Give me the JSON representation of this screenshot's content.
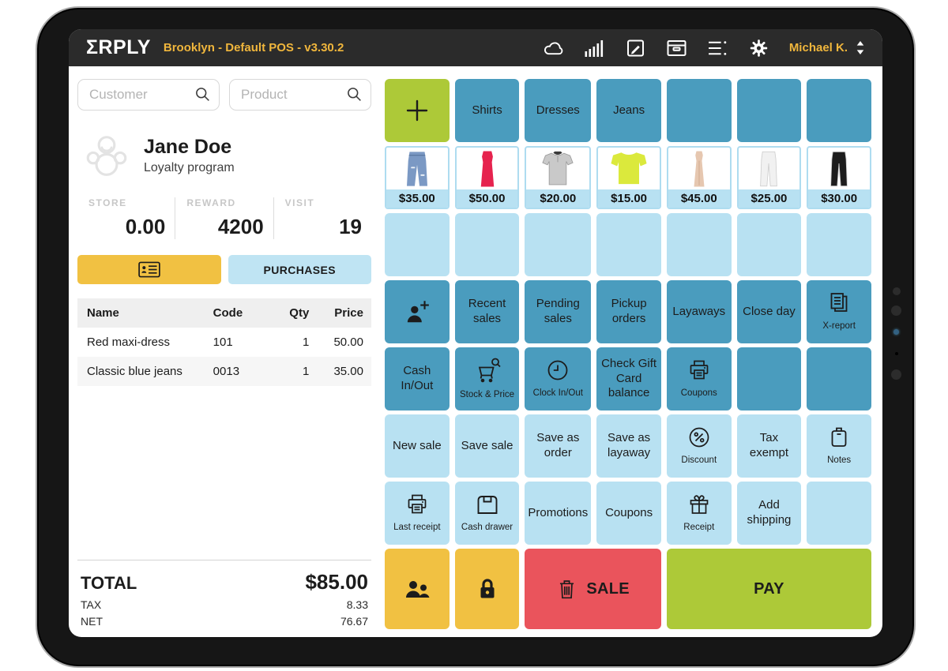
{
  "topbar": {
    "logo": "ΣRPLY",
    "title": "Brooklyn - Default POS - v3.30.2",
    "user": "Michael K.",
    "icons": [
      "cloud",
      "signal-bars",
      "edit",
      "archive",
      "menu-lines",
      "gear"
    ]
  },
  "left_panel": {
    "customer_search_placeholder": "Customer",
    "product_search_placeholder": "Product",
    "customer": {
      "name": "Jane Doe",
      "subtitle": "Loyalty program"
    },
    "stats": [
      {
        "label": "STORE",
        "value": "0.00"
      },
      {
        "label": "REWARD",
        "value": "4200"
      },
      {
        "label": "VISIT",
        "value": "19"
      }
    ],
    "purchases_label": "PURCHASES",
    "table": {
      "headers": [
        "Name",
        "Code",
        "Qty",
        "Price"
      ],
      "rows": [
        {
          "name": "Red maxi-dress",
          "code": "101",
          "qty": "1",
          "price": "50.00"
        },
        {
          "name": "Classic blue jeans",
          "code": "0013",
          "qty": "1",
          "price": "35.00"
        }
      ]
    },
    "totals": {
      "total_label": "TOTAL",
      "total_value": "$85.00",
      "tax_label": "TAX",
      "tax_value": "8.33",
      "net_label": "NET",
      "net_value": "76.67"
    }
  },
  "grid": {
    "rows": [
      {
        "cells": [
          {
            "name": "add-category-button",
            "style": "green",
            "icon": "plus",
            "icon_size": 34
          },
          {
            "name": "category-shirts",
            "style": "teal",
            "label": "Shirts"
          },
          {
            "name": "category-dresses",
            "style": "teal",
            "label": "Dresses"
          },
          {
            "name": "category-jeans",
            "style": "teal",
            "label": "Jeans"
          },
          {
            "name": "empty-category-slot",
            "style": "teal",
            "blank": true
          },
          {
            "name": "empty-category-slot",
            "style": "teal",
            "blank": true
          },
          {
            "name": "empty-category-slot",
            "style": "teal",
            "blank": true
          }
        ]
      },
      {
        "cells": [
          {
            "name": "product-blue-jeans",
            "product": {
              "shape": "jeans",
              "color": "#7b99c4",
              "price": "$35.00"
            }
          },
          {
            "name": "product-red-maxi-dress",
            "product": {
              "shape": "maxi-dress",
              "color": "#e6234e",
              "price": "$50.00"
            }
          },
          {
            "name": "product-gray-polo",
            "product": {
              "shape": "polo",
              "color": "#c9c9c9",
              "price": "$20.00"
            }
          },
          {
            "name": "product-neon-tshirt",
            "product": {
              "shape": "tshirt",
              "color": "#dbe93c",
              "price": "$15.00"
            }
          },
          {
            "name": "product-beige-gown",
            "product": {
              "shape": "gown",
              "color": "#e6c7b0",
              "price": "$45.00"
            }
          },
          {
            "name": "product-white-pants",
            "product": {
              "shape": "pants",
              "color": "#f1f1f1",
              "price": "$25.00"
            }
          },
          {
            "name": "product-black-pants",
            "product": {
              "shape": "pants",
              "color": "#1d1d1d",
              "price": "$30.00"
            }
          }
        ]
      },
      {
        "cells": [
          {
            "name": "empty-slot",
            "style": "lightblue",
            "blank": true
          },
          {
            "name": "empty-slot",
            "style": "lightblue",
            "blank": true
          },
          {
            "name": "empty-slot",
            "style": "lightblue",
            "blank": true
          },
          {
            "name": "empty-slot",
            "style": "lightblue",
            "blank": true
          },
          {
            "name": "empty-slot",
            "style": "lightblue",
            "blank": true
          },
          {
            "name": "empty-slot",
            "style": "lightblue",
            "blank": true
          },
          {
            "name": "empty-slot",
            "style": "lightblue",
            "blank": true
          }
        ]
      },
      {
        "cells": [
          {
            "name": "add-customer-button",
            "style": "teal",
            "icon": "person-add",
            "icon_size": 36
          },
          {
            "name": "recent-sales-button",
            "style": "teal",
            "label": "Recent sales"
          },
          {
            "name": "pending-sales-button",
            "style": "teal",
            "label": "Pending sales"
          },
          {
            "name": "pickup-orders-button",
            "style": "teal",
            "label": "Pickup orders"
          },
          {
            "name": "layaways-button",
            "style": "teal",
            "label": "Layaways"
          },
          {
            "name": "close-day-button",
            "style": "teal",
            "label": "Close day"
          },
          {
            "name": "x-report-button",
            "style": "teal",
            "icon": "documents",
            "sublabel": "X-report"
          }
        ]
      },
      {
        "cells": [
          {
            "name": "cash-in-out-button",
            "style": "teal",
            "label": "Cash In/Out"
          },
          {
            "name": "stock-and-price-button",
            "style": "teal",
            "icon": "cart-search",
            "icon_size": 34,
            "sublabel": "Stock & Price"
          },
          {
            "name": "clock-in-out-button",
            "style": "teal",
            "icon": "clock",
            "sublabel": "Clock In/Out"
          },
          {
            "name": "check-gift-card-balance-button",
            "style": "teal",
            "label": "Check Gift Card balance"
          },
          {
            "name": "coupons-print-button",
            "style": "teal",
            "icon": "printer",
            "sublabel": "Coupons"
          },
          {
            "name": "empty-slot",
            "style": "teal",
            "blank": true
          },
          {
            "name": "empty-slot",
            "style": "teal",
            "blank": true
          }
        ]
      },
      {
        "cells": [
          {
            "name": "new-sale-button",
            "style": "lightblue",
            "label": "New sale"
          },
          {
            "name": "save-sale-button",
            "style": "lightblue",
            "label": "Save sale"
          },
          {
            "name": "save-as-order-button",
            "style": "lightblue",
            "label": "Save as order"
          },
          {
            "name": "save-as-layaway-button",
            "style": "lightblue",
            "label": "Save as layaway"
          },
          {
            "name": "discount-button",
            "style": "lightblue",
            "icon": "percent",
            "sublabel": "Discount"
          },
          {
            "name": "tax-exempt-button",
            "style": "lightblue",
            "label": "Tax exempt"
          },
          {
            "name": "notes-button",
            "style": "lightblue",
            "icon": "clipboard",
            "sublabel": "Notes"
          }
        ]
      },
      {
        "cells": [
          {
            "name": "last-receipt-button",
            "style": "lightblue",
            "icon": "printer",
            "sublabel": "Last receipt"
          },
          {
            "name": "cash-drawer-button",
            "style": "lightblue",
            "icon": "drawer",
            "sublabel": "Cash drawer"
          },
          {
            "name": "promotions-button",
            "style": "lightblue",
            "label": "Promotions"
          },
          {
            "name": "coupons-button",
            "style": "lightblue",
            "label": "Coupons"
          },
          {
            "name": "receipt-gift-button",
            "style": "lightblue",
            "icon": "gift",
            "sublabel": "Receipt"
          },
          {
            "name": "add-shipping-button",
            "style": "lightblue",
            "label": "Add shipping"
          },
          {
            "name": "empty-slot",
            "style": "lightblue",
            "blank": true
          }
        ]
      },
      {
        "cells": [
          {
            "name": "customers-button",
            "style": "yellow",
            "icon": "people",
            "icon_size": 36
          },
          {
            "name": "lock-button",
            "style": "yellow",
            "icon": "lock",
            "icon_size": 30
          },
          {
            "name": "void-sale-button",
            "style": "red",
            "icon": "trash",
            "icon_size": 27,
            "label": "SALE",
            "span": 2,
            "inline": true,
            "big": true
          },
          {
            "name": "pay-button",
            "style": "green",
            "label": "PAY",
            "span": 3,
            "big": true
          }
        ]
      }
    ]
  },
  "colors": {
    "topbar_bg": "#2b2b2b",
    "accent_text": "#f0b63c",
    "teal": "#4a9cbe",
    "light_blue": "#b8e1f2",
    "green": "#adc938",
    "yellow": "#f1c142",
    "red": "#ea545c"
  }
}
